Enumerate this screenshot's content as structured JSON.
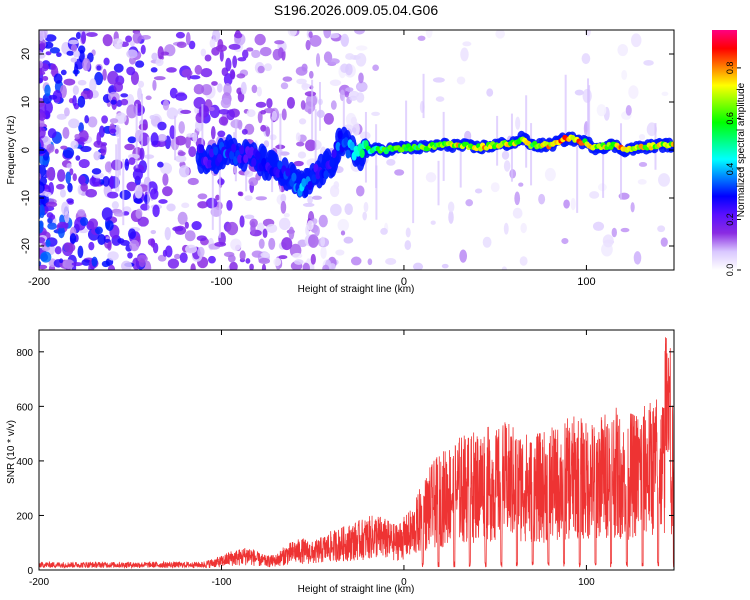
{
  "title": "S196.2026.009.05.04.G06",
  "colors": {
    "snr_line": "#ee3333",
    "background": "#ffffff",
    "axis": "#000000"
  },
  "chart_data": [
    {
      "type": "heatmap",
      "name": "spectrogram",
      "xlabel": "Height of straight line (km)",
      "ylabel": "Frequency (Hz)",
      "xlim": [
        -200,
        148
      ],
      "ylim": [
        -25,
        25
      ],
      "xticks": [
        -200,
        -100,
        0,
        100
      ],
      "xtick_labels": [
        "-200",
        "-100",
        "0",
        "100"
      ],
      "yticks": [
        -20,
        -10,
        0,
        10,
        20
      ],
      "ytick_labels": [
        "-20",
        "-10",
        "0",
        "10",
        "20"
      ],
      "colorbar": {
        "label": "Normalized spectral amplitude",
        "range": [
          0,
          0.95
        ],
        "ticks": [
          0.0,
          0.2,
          0.4,
          0.6,
          0.8
        ],
        "tick_labels": [
          "0.0",
          "0.2",
          "0.4",
          "0.6",
          "0.8"
        ],
        "colormap": [
          "#ffffff",
          "#d9c7ff",
          "#8a2be2",
          "#5a10ff",
          "#0000ff",
          "#0080ff",
          "#00ffff",
          "#00ff80",
          "#00ff00",
          "#80ff00",
          "#ffff00",
          "#ff8000",
          "#ff0000",
          "#ff0080"
        ]
      },
      "ridge": [
        {
          "x": -112,
          "f": -1,
          "amp": 0.25
        },
        {
          "x": -105,
          "f": -2,
          "amp": 0.3
        },
        {
          "x": -98,
          "f": 0,
          "amp": 0.35
        },
        {
          "x": -90,
          "f": -1,
          "amp": 0.3
        },
        {
          "x": -80,
          "f": -2,
          "amp": 0.25
        },
        {
          "x": -70,
          "f": -4,
          "amp": 0.3
        },
        {
          "x": -62,
          "f": -6,
          "amp": 0.35
        },
        {
          "x": -55,
          "f": -8,
          "amp": 0.4
        },
        {
          "x": -48,
          "f": -5,
          "amp": 0.3
        },
        {
          "x": -40,
          "f": -3,
          "amp": 0.3
        },
        {
          "x": -35,
          "f": 2,
          "amp": 0.35
        },
        {
          "x": -30,
          "f": 0,
          "amp": 0.45
        },
        {
          "x": -25,
          "f": -1,
          "amp": 0.55
        },
        {
          "x": -20,
          "f": 0,
          "amp": 0.55
        },
        {
          "x": -10,
          "f": 0,
          "amp": 0.6
        },
        {
          "x": 0,
          "f": 0.5,
          "amp": 0.6
        },
        {
          "x": 10,
          "f": 0.5,
          "amp": 0.65
        },
        {
          "x": 20,
          "f": 1,
          "amp": 0.7
        },
        {
          "x": 30,
          "f": 1,
          "amp": 0.75
        },
        {
          "x": 40,
          "f": 0.5,
          "amp": 0.75
        },
        {
          "x": 50,
          "f": 1,
          "amp": 0.75
        },
        {
          "x": 60,
          "f": 1.5,
          "amp": 0.7
        },
        {
          "x": 65,
          "f": 2.5,
          "amp": 0.75
        },
        {
          "x": 70,
          "f": 1,
          "amp": 0.7
        },
        {
          "x": 80,
          "f": 1,
          "amp": 0.8
        },
        {
          "x": 90,
          "f": 2.5,
          "amp": 0.85
        },
        {
          "x": 100,
          "f": 1.5,
          "amp": 0.75
        },
        {
          "x": 105,
          "f": 0.5,
          "amp": 0.7
        },
        {
          "x": 115,
          "f": 1,
          "amp": 0.75
        },
        {
          "x": 120,
          "f": 0,
          "amp": 0.8
        },
        {
          "x": 130,
          "f": 0.5,
          "amp": 0.75
        },
        {
          "x": 140,
          "f": 1,
          "amp": 0.75
        },
        {
          "x": 148,
          "f": 1,
          "amp": 0.7
        }
      ]
    },
    {
      "type": "line",
      "name": "snr",
      "xlabel": "Height of straight line (km)",
      "ylabel": "SNR (10 * v/v)",
      "xlim": [
        -200,
        148
      ],
      "ylim": [
        0,
        880
      ],
      "xticks": [
        -200,
        -100,
        0,
        100
      ],
      "xtick_labels": [
        "-200",
        "-100",
        "0",
        "100"
      ],
      "yticks": [
        0,
        200,
        400,
        600,
        800
      ],
      "ytick_labels": [
        "0",
        "200",
        "400",
        "600",
        "800"
      ],
      "series": [
        {
          "name": "SNR",
          "x": [
            -200,
            -190,
            -180,
            -170,
            -160,
            -150,
            -140,
            -130,
            -120,
            -110,
            -100,
            -95,
            -90,
            -85,
            -80,
            -75,
            -70,
            -65,
            -60,
            -55,
            -50,
            -45,
            -40,
            -35,
            -30,
            -25,
            -20,
            -15,
            -10,
            -5,
            0,
            5,
            10,
            15,
            20,
            25,
            30,
            35,
            40,
            45,
            50,
            55,
            60,
            65,
            70,
            75,
            80,
            85,
            90,
            95,
            100,
            105,
            110,
            115,
            120,
            125,
            130,
            135,
            140,
            145,
            148
          ],
          "values": [
            20,
            22,
            20,
            21,
            19,
            22,
            20,
            21,
            22,
            25,
            40,
            55,
            60,
            70,
            50,
            40,
            45,
            70,
            85,
            90,
            80,
            95,
            110,
            120,
            130,
            140,
            150,
            160,
            145,
            130,
            150,
            180,
            250,
            300,
            330,
            360,
            380,
            390,
            400,
            410,
            395,
            420,
            410,
            400,
            380,
            390,
            400,
            410,
            430,
            440,
            420,
            430,
            450,
            470,
            430,
            450,
            460,
            480,
            500,
            520,
            450
          ]
        }
      ]
    }
  ]
}
